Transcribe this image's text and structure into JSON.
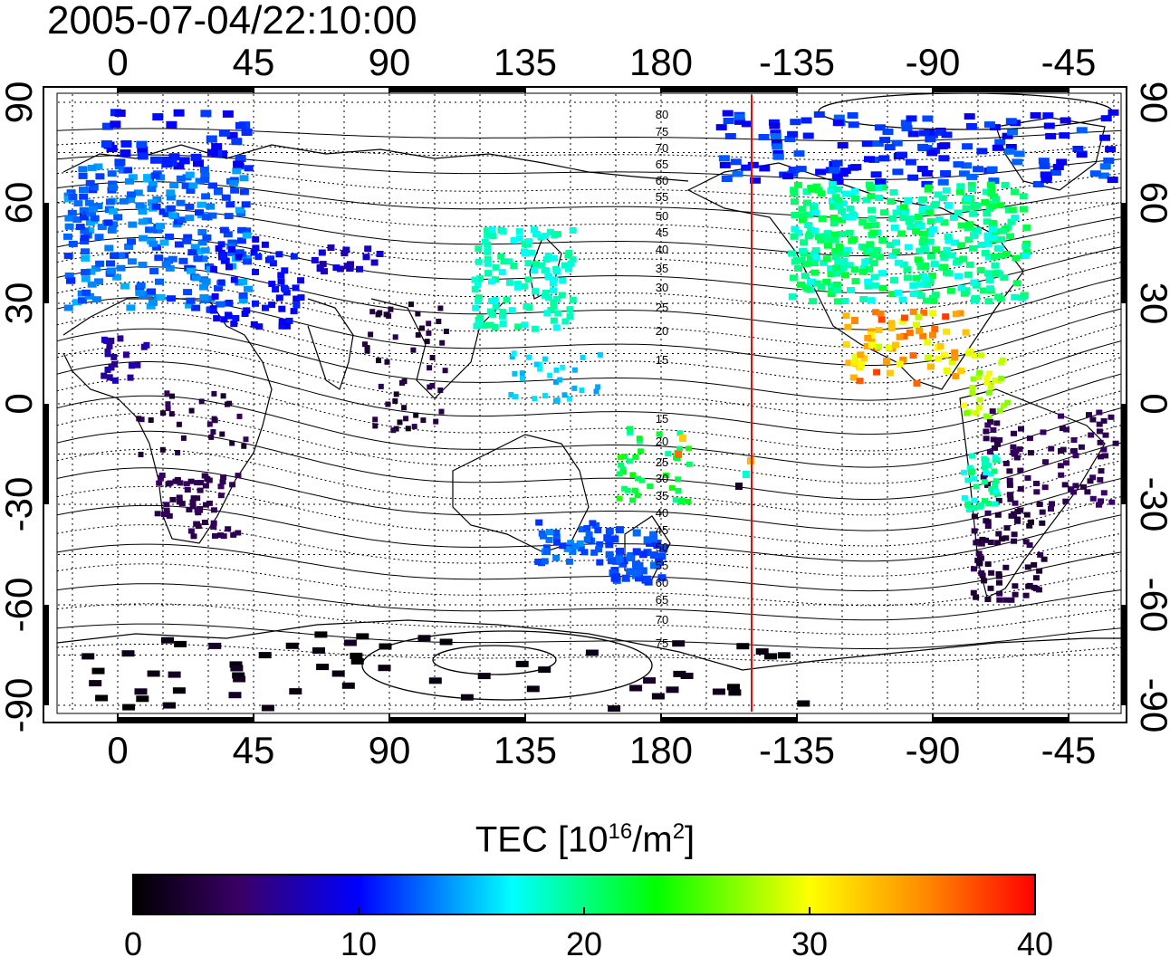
{
  "timestamp": "2005-07-04/22:10:00",
  "map": {
    "lon_ticks_top": [
      "0",
      "45",
      "90",
      "135",
      "180",
      "-135",
      "-90",
      "-45"
    ],
    "lon_ticks_bottom": [
      "0",
      "45",
      "90",
      "135",
      "180",
      "-135",
      "-90",
      "-45"
    ],
    "lat_ticks_left": [
      "90",
      "60",
      "30",
      "0",
      "-30",
      "-60",
      "-90"
    ],
    "lat_ticks_right": [
      "90",
      "60",
      "30",
      "0",
      "-30",
      "-60",
      "-90"
    ],
    "contour_labels_north": [
      "80",
      "75",
      "70",
      "65",
      "60",
      "55",
      "50",
      "45",
      "40",
      "35",
      "30",
      "25",
      "20",
      "15"
    ],
    "contour_labels_south": [
      "15",
      "20",
      "25",
      "30",
      "35",
      "40",
      "45",
      "50",
      "55",
      "60",
      "65",
      "70",
      "75"
    ],
    "terminator_color": "#ff0000",
    "terminator_lon": -150
  },
  "colorbar": {
    "title_main": "TEC  [10",
    "title_exp": "16",
    "title_unit": "/m",
    "title_unit_exp": "2",
    "title_close": "]",
    "tick_labels": [
      "0",
      "10",
      "20",
      "30",
      "40"
    ],
    "min": 0,
    "max": 40,
    "stops": [
      "#000000",
      "#3a0068",
      "#0000ff",
      "#00ffff",
      "#00ff00",
      "#ffff00",
      "#ff0000"
    ]
  }
}
